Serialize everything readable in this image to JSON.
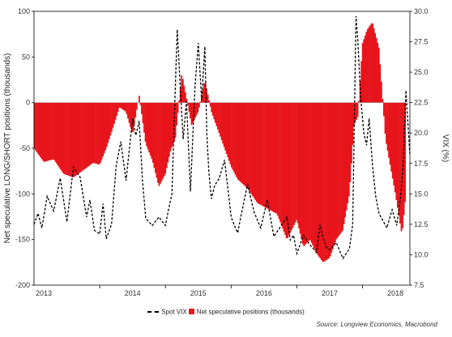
{
  "chart_data": {
    "type": "bar",
    "xlabel": "",
    "ylabel": "Net speculative LONG/SHORT positions (thousands)",
    "y2label": "VIX (%)",
    "ylim": [
      -200,
      100
    ],
    "y2lim": [
      7.5,
      30.0
    ],
    "yticks": [
      "100",
      "50",
      "0",
      "-50",
      "-100",
      "-150",
      "-200"
    ],
    "y2ticks": [
      "30.0",
      "27.5",
      "25.0",
      "22.5",
      "20.0",
      "17.5",
      "15.0",
      "12.5",
      "10.0",
      "7.5"
    ],
    "xticks": [
      "2013",
      "2014",
      "2015",
      "2016",
      "2017",
      "2018"
    ],
    "xlim": [
      2013.0,
      2018.72
    ],
    "grid": false,
    "legend_position": "bottom",
    "colors": {
      "bars": "#e8141b",
      "line": "#000000"
    },
    "series": [
      {
        "name": "Net speculative positions (thousands)",
        "kind": "bar",
        "axis": "left",
        "x": [
          2013.0,
          2013.15,
          2013.3,
          2013.45,
          2013.6,
          2013.75,
          2013.9,
          2014.0,
          2014.1,
          2014.2,
          2014.3,
          2014.4,
          2014.5,
          2014.6,
          2014.7,
          2014.8,
          2014.9,
          2015.0,
          2015.08,
          2015.15,
          2015.25,
          2015.4,
          2015.5,
          2015.6,
          2015.7,
          2015.85,
          2016.0,
          2016.1,
          2016.25,
          2016.4,
          2016.55,
          2016.7,
          2016.85,
          2017.0,
          2017.1,
          2017.2,
          2017.3,
          2017.4,
          2017.5,
          2017.6,
          2017.7,
          2017.8,
          2017.87,
          2017.93,
          2018.0,
          2018.07,
          2018.15,
          2018.25,
          2018.35,
          2018.5,
          2018.6,
          2018.7
        ],
        "values": [
          -50,
          -65,
          -62,
          -78,
          -82,
          -74,
          -66,
          -68,
          -50,
          -28,
          -5,
          -10,
          -35,
          8,
          -45,
          -63,
          -92,
          -78,
          -52,
          -40,
          32,
          -25,
          -10,
          25,
          -10,
          -40,
          -70,
          -84,
          -94,
          -110,
          -116,
          -122,
          -150,
          -128,
          -158,
          -150,
          -165,
          -175,
          -170,
          -150,
          -140,
          -100,
          -25,
          -15,
          65,
          80,
          88,
          60,
          -40,
          -100,
          -145,
          -70
        ]
      },
      {
        "name": "Spot VIX",
        "kind": "line",
        "axis": "right",
        "x": [
          2013.0,
          2013.06,
          2013.12,
          2013.2,
          2013.3,
          2013.4,
          2013.5,
          2013.6,
          2013.7,
          2013.8,
          2013.85,
          2013.92,
          2014.0,
          2014.05,
          2014.1,
          2014.18,
          2014.25,
          2014.32,
          2014.4,
          2014.5,
          2014.55,
          2014.6,
          2014.65,
          2014.7,
          2014.8,
          2014.9,
          2015.0,
          2015.05,
          2015.1,
          2015.13,
          2015.18,
          2015.22,
          2015.27,
          2015.32,
          2015.38,
          2015.45,
          2015.5,
          2015.55,
          2015.6,
          2015.63,
          2015.66,
          2015.7,
          2015.75,
          2015.82,
          2015.9,
          2016.0,
          2016.05,
          2016.1,
          2016.15,
          2016.25,
          2016.35,
          2016.45,
          2016.55,
          2016.65,
          2016.75,
          2016.85,
          2016.9,
          2016.95,
          2017.0,
          2017.1,
          2017.2,
          2017.3,
          2017.35,
          2017.4,
          2017.45,
          2017.5,
          2017.6,
          2017.7,
          2017.8,
          2017.85,
          2017.9,
          2017.93,
          2017.97,
          2018.02,
          2018.06,
          2018.1,
          2018.15,
          2018.2,
          2018.25,
          2018.3,
          2018.37,
          2018.45,
          2018.52,
          2018.58,
          2018.62,
          2018.66,
          2018.72
        ],
        "values": [
          12.5,
          13.4,
          12.2,
          14.8,
          13.6,
          16.3,
          12.7,
          17.2,
          16.4,
          13.1,
          14.5,
          12.0,
          11.7,
          14.2,
          11.3,
          12.5,
          17.3,
          19.3,
          16.1,
          21.2,
          19.8,
          21.0,
          16.2,
          13.0,
          12.4,
          13.1,
          12.4,
          13.8,
          15.0,
          20.5,
          28.5,
          24.3,
          19.5,
          22.6,
          15.2,
          23.8,
          27.4,
          22.7,
          27.1,
          20.0,
          16.8,
          14.6,
          15.7,
          16.3,
          17.8,
          13.1,
          12.4,
          11.8,
          13.2,
          15.8,
          13.5,
          12.2,
          14.5,
          11.5,
          12.3,
          13.1,
          11.2,
          11.6,
          10.1,
          11.6,
          10.8,
          10.2,
          12.5,
          11.4,
          10.6,
          10.4,
          11.0,
          9.7,
          10.5,
          12.5,
          29.6,
          27.4,
          22.9,
          20.0,
          19.0,
          21.2,
          17.4,
          14.8,
          13.4,
          12.9,
          12.2,
          13.7,
          12.4,
          14.8,
          17.5,
          23.5,
          18.2
        ]
      }
    ]
  },
  "source": "Source: Longview Economics, Macrobond"
}
